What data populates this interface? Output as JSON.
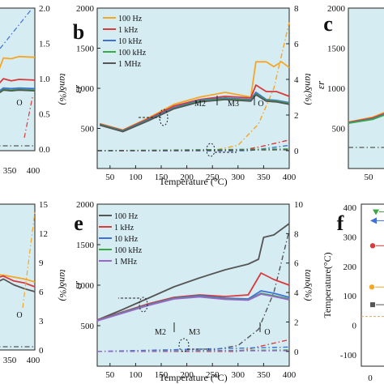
{
  "figure": {
    "panel_labels": [
      "b",
      "c",
      "e",
      "f"
    ]
  },
  "chart_data": [
    {
      "panel": "a (partial)",
      "type": "line",
      "x_ticks": [
        "350",
        "400"
      ],
      "y2_ticks": [
        "0.0",
        "0.5",
        "1.0",
        "1.5",
        "2.0"
      ],
      "y2label": "tanδ(%)",
      "annotations": [
        "O"
      ],
      "series": [
        {
          "color": "#f5a623",
          "values": [
            [
              318,
              870
            ],
            [
              340,
              1300
            ],
            [
              355,
              1290
            ],
            [
              370,
              1320
            ],
            [
              400,
              1310
            ]
          ]
        },
        {
          "color": "#d93a3a",
          "values": [
            [
              318,
              830
            ],
            [
              340,
              1010
            ],
            [
              355,
              980
            ],
            [
              370,
              1000
            ],
            [
              400,
              990
            ]
          ]
        },
        {
          "color": "#3f6fd9",
          "values": [
            [
              318,
              760
            ],
            [
              340,
              880
            ],
            [
              355,
              870
            ],
            [
              370,
              880
            ],
            [
              400,
              870
            ]
          ]
        },
        {
          "color": "#3aa845",
          "values": [
            [
              318,
              750
            ],
            [
              340,
              860
            ],
            [
              355,
              850
            ],
            [
              370,
              860
            ],
            [
              400,
              850
            ]
          ]
        },
        {
          "color": "#555555",
          "values": [
            [
              318,
              740
            ],
            [
              340,
              850
            ],
            [
              355,
              840
            ],
            [
              370,
              850
            ],
            [
              400,
              840
            ]
          ]
        }
      ]
    },
    {
      "panel": "b",
      "type": "line",
      "xlabel": "Temperature (°C)",
      "ylabel": "εr",
      "y2label": "tanδ(%)",
      "xlim": [
        25,
        400
      ],
      "ylim": [
        0,
        2000
      ],
      "y2lim": [
        -1,
        8
      ],
      "x_ticks": [
        50,
        100,
        150,
        200,
        250,
        300,
        350,
        400
      ],
      "y_ticks": [
        500,
        1000,
        1500,
        2000
      ],
      "y2_ticks": [
        0,
        2,
        4,
        6,
        8
      ],
      "legend": [
        "100 Hz",
        "1 kHz",
        "10 kHz",
        "100 kHz",
        "1 MHz"
      ],
      "annotations": [
        "M2",
        "M3",
        "O"
      ],
      "series": [
        {
          "name": "100 Hz",
          "color": "#f5a623",
          "eps": [
            [
              30,
              560
            ],
            [
              75,
              480
            ],
            [
              125,
              630
            ],
            [
              175,
              800
            ],
            [
              225,
              890
            ],
            [
              275,
              950
            ],
            [
              325,
              890
            ],
            [
              335,
              1330
            ],
            [
              355,
              1330
            ],
            [
              370,
              1270
            ],
            [
              385,
              1330
            ],
            [
              400,
              1260
            ]
          ],
          "tan": [
            [
              25,
              0
            ],
            [
              250,
              0
            ],
            [
              300,
              0.3
            ],
            [
              340,
              1.5
            ],
            [
              370,
              3.5
            ],
            [
              400,
              7.2
            ]
          ]
        },
        {
          "name": "1 kHz",
          "color": "#d93a3a",
          "eps": [
            [
              30,
              555
            ],
            [
              75,
              475
            ],
            [
              125,
              620
            ],
            [
              175,
              780
            ],
            [
              225,
              860
            ],
            [
              275,
              900
            ],
            [
              325,
              880
            ],
            [
              335,
              1040
            ],
            [
              355,
              960
            ],
            [
              375,
              960
            ],
            [
              400,
              900
            ]
          ],
          "tan": [
            [
              25,
              0
            ],
            [
              300,
              0
            ],
            [
              340,
              0.2
            ],
            [
              400,
              0.6
            ]
          ]
        },
        {
          "name": "10 kHz",
          "color": "#3f6fd9",
          "eps": [
            [
              30,
              550
            ],
            [
              75,
              470
            ],
            [
              125,
              610
            ],
            [
              175,
              760
            ],
            [
              225,
              850
            ],
            [
              275,
              880
            ],
            [
              325,
              860
            ],
            [
              335,
              950
            ],
            [
              355,
              860
            ],
            [
              375,
              850
            ],
            [
              400,
              820
            ]
          ],
          "tan": [
            [
              25,
              0
            ],
            [
              320,
              0
            ],
            [
              400,
              0.3
            ]
          ]
        },
        {
          "name": "100 kHz",
          "color": "#3aa845",
          "eps": [
            [
              30,
              545
            ],
            [
              75,
              465
            ],
            [
              125,
              600
            ],
            [
              175,
              750
            ],
            [
              225,
              840
            ],
            [
              275,
              870
            ],
            [
              325,
              850
            ],
            [
              335,
              930
            ],
            [
              355,
              850
            ],
            [
              375,
              840
            ],
            [
              400,
              810
            ]
          ],
          "tan": [
            [
              25,
              0
            ],
            [
              400,
              0.1
            ]
          ]
        },
        {
          "name": "1 MHz",
          "color": "#555555",
          "eps": [
            [
              30,
              540
            ],
            [
              75,
              460
            ],
            [
              125,
              595
            ],
            [
              175,
              745
            ],
            [
              225,
              830
            ],
            [
              275,
              860
            ],
            [
              325,
              840
            ],
            [
              335,
              920
            ],
            [
              355,
              840
            ],
            [
              375,
              830
            ],
            [
              400,
              800
            ]
          ],
          "tan": [
            [
              25,
              0
            ],
            [
              400,
              0.05
            ]
          ]
        }
      ]
    },
    {
      "panel": "c (partial)",
      "type": "line",
      "ylabel": "εr",
      "y_ticks": [
        500,
        1000,
        1500,
        2000
      ],
      "x_ticks": [
        "50"
      ],
      "series": [
        {
          "color": "#f5a623",
          "values": [
            [
              25,
              580
            ],
            [
              75,
              640
            ],
            [
              125,
              760
            ]
          ]
        },
        {
          "color": "#d93a3a",
          "values": [
            [
              25,
              575
            ],
            [
              75,
              630
            ],
            [
              125,
              745
            ]
          ]
        },
        {
          "color": "#3f6fd9",
          "values": [
            [
              25,
              570
            ],
            [
              75,
              620
            ],
            [
              125,
              735
            ]
          ]
        },
        {
          "color": "#3aa845",
          "values": [
            [
              25,
              565
            ],
            [
              75,
              612
            ],
            [
              125,
              725
            ]
          ]
        }
      ]
    },
    {
      "panel": "d (partial)",
      "type": "line",
      "x_ticks": [
        "350",
        "400"
      ],
      "y2label": "tanδ(%)",
      "y2_ticks": [
        0,
        3,
        6,
        9,
        12,
        15
      ],
      "annotations": [
        "O"
      ],
      "series": [
        {
          "color": "#f5a623",
          "values": [
            [
              318,
              7.8
            ],
            [
              340,
              7.7
            ],
            [
              360,
              7.5
            ],
            [
              380,
              7.3
            ],
            [
              400,
              7.0
            ]
          ]
        },
        {
          "color": "#d93a3a",
          "values": [
            [
              318,
              7.3
            ],
            [
              340,
              7.6
            ],
            [
              360,
              7.1
            ],
            [
              380,
              6.9
            ],
            [
              400,
              6.5
            ]
          ]
        },
        {
          "color": "#555555",
          "values": [
            [
              318,
              6.7
            ],
            [
              340,
              7.3
            ],
            [
              360,
              6.7
            ],
            [
              380,
              6.3
            ],
            [
              400,
              6.0
            ]
          ]
        }
      ]
    },
    {
      "panel": "e",
      "type": "line",
      "xlabel": "Temperature (°C)",
      "ylabel": "εr",
      "y2label": "tanδ(%)",
      "xlim": [
        25,
        400
      ],
      "ylim": [
        0,
        2000
      ],
      "y2lim": [
        -1,
        10
      ],
      "x_ticks": [
        50,
        100,
        150,
        200,
        250,
        300,
        350,
        400
      ],
      "y_ticks": [
        500,
        1000,
        1500,
        2000
      ],
      "y2_ticks": [
        0,
        2,
        4,
        6,
        8,
        10
      ],
      "legend": [
        "100 Hz",
        "1 kHz",
        "10 kHz",
        "100 kHz",
        "1 MHz"
      ],
      "annotations": [
        "M2",
        "M3",
        "O"
      ],
      "series": [
        {
          "name": "100 Hz",
          "color": "#555555",
          "eps": [
            [
              25,
              570
            ],
            [
              75,
              700
            ],
            [
              125,
              840
            ],
            [
              175,
              980
            ],
            [
              225,
              1090
            ],
            [
              275,
              1190
            ],
            [
              320,
              1260
            ],
            [
              340,
              1320
            ],
            [
              350,
              1590
            ],
            [
              370,
              1620
            ],
            [
              400,
              1760
            ]
          ],
          "tan": [
            [
              25,
              0
            ],
            [
              200,
              0
            ],
            [
              250,
              0.1
            ],
            [
              300,
              0.4
            ],
            [
              340,
              1.5
            ],
            [
              370,
              4
            ],
            [
              400,
              8.2
            ]
          ]
        },
        {
          "name": "1 kHz",
          "color": "#d93a3a",
          "eps": [
            [
              25,
              570
            ],
            [
              75,
              670
            ],
            [
              125,
              770
            ],
            [
              175,
              850
            ],
            [
              225,
              880
            ],
            [
              275,
              860
            ],
            [
              320,
              880
            ],
            [
              345,
              1150
            ],
            [
              370,
              1070
            ],
            [
              400,
              1000
            ]
          ],
          "tan": [
            [
              25,
              0
            ],
            [
              300,
              0
            ],
            [
              350,
              0.4
            ],
            [
              400,
              0.8
            ]
          ]
        },
        {
          "name": "10 kHz",
          "color": "#3f6fd9",
          "eps": [
            [
              25,
              565
            ],
            [
              75,
              665
            ],
            [
              125,
              760
            ],
            [
              175,
              840
            ],
            [
              225,
              870
            ],
            [
              275,
              840
            ],
            [
              320,
              830
            ],
            [
              345,
              930
            ],
            [
              370,
              900
            ],
            [
              400,
              850
            ]
          ],
          "tan": [
            [
              25,
              0
            ],
            [
              400,
              0.3
            ]
          ]
        },
        {
          "name": "100 kHz",
          "color": "#3aa845",
          "eps": [
            [
              25,
              562
            ],
            [
              75,
              660
            ],
            [
              125,
              755
            ],
            [
              175,
              835
            ],
            [
              225,
              860
            ],
            [
              275,
              830
            ],
            [
              320,
              820
            ],
            [
              345,
              900
            ],
            [
              370,
              870
            ],
            [
              400,
              830
            ]
          ],
          "tan": [
            [
              25,
              0
            ],
            [
              400,
              0.1
            ]
          ]
        },
        {
          "name": "1 MHz",
          "color": "#9966cc",
          "eps": [
            [
              25,
              560
            ],
            [
              75,
              655
            ],
            [
              125,
              750
            ],
            [
              175,
              830
            ],
            [
              225,
              855
            ],
            [
              275,
              825
            ],
            [
              320,
              815
            ],
            [
              345,
              890
            ],
            [
              370,
              860
            ],
            [
              400,
              820
            ]
          ],
          "tan": [
            [
              25,
              0
            ],
            [
              400,
              0.05
            ]
          ]
        }
      ]
    },
    {
      "panel": "f (partial)",
      "type": "scatter",
      "ylabel": "Temperature(°C)",
      "ylim": [
        -100,
        400
      ],
      "y_ticks": [
        -100,
        0,
        100,
        200,
        300,
        400
      ],
      "x_ticks": [
        "0"
      ],
      "series": [
        {
          "color": "#3aa845",
          "marker": "triangle-down",
          "points": [
            [
              0,
              385
            ]
          ]
        },
        {
          "color": "#3f6fd9",
          "marker": "triangle-left",
          "points": [
            [
              0,
              355
            ]
          ]
        },
        {
          "color": "#d93a3a",
          "marker": "circle",
          "points": [
            [
              0,
              270
            ]
          ]
        },
        {
          "color": "#f5a623",
          "marker": "circle",
          "points": [
            [
              0,
              130
            ]
          ]
        },
        {
          "color": "#555555",
          "marker": "square",
          "points": [
            [
              0,
              70
            ]
          ]
        }
      ]
    }
  ]
}
